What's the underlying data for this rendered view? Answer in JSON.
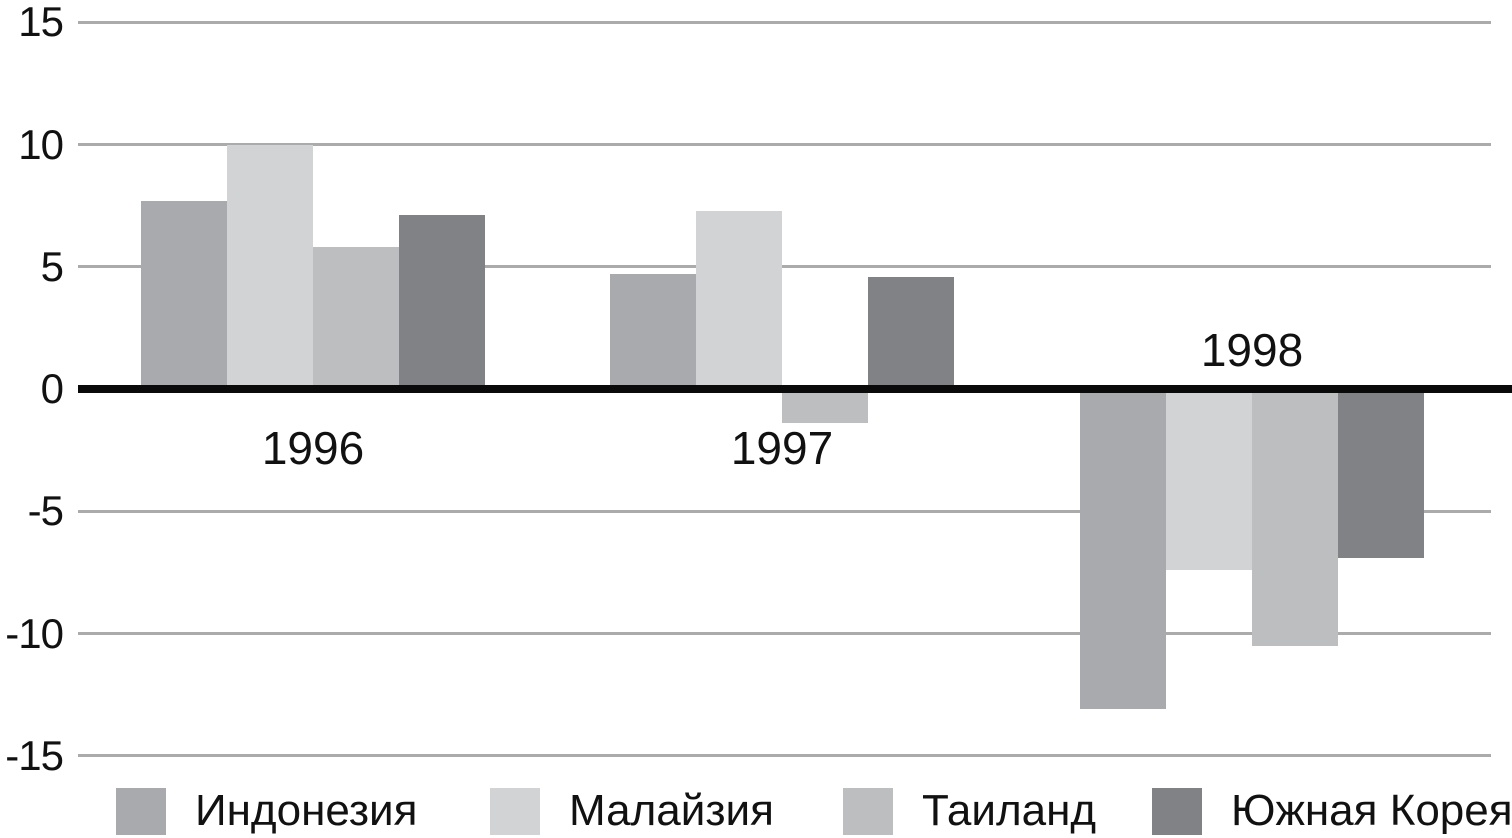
{
  "chart_data": {
    "type": "bar",
    "title": "",
    "xlabel": "",
    "ylabel": "",
    "categories": [
      "1996",
      "1997",
      "1998"
    ],
    "series": [
      {
        "id": "indonesia",
        "name": "Индонезия",
        "color": "#a9aaad",
        "values": [
          7.7,
          4.7,
          -13.1
        ]
      },
      {
        "id": "malaysia",
        "name": "Малайзия",
        "color": "#d2d3d5",
        "values": [
          10.0,
          7.3,
          -7.4
        ]
      },
      {
        "id": "thailand",
        "name": "Таиланд",
        "color": "#bcbec0",
        "values": [
          5.8,
          -1.4,
          -10.5
        ]
      },
      {
        "id": "south-korea",
        "name": "Южная Корея",
        "color": "#808285",
        "values": [
          7.1,
          4.6,
          -6.9
        ]
      }
    ],
    "ylim": [
      -15,
      15
    ],
    "yticks": [
      15,
      10,
      5,
      0,
      -5,
      -10,
      -15
    ],
    "grid": "horizontal",
    "legend_position": "bottom"
  },
  "colors": {
    "background": "#ffffff",
    "gridline": "#ababab",
    "axis": "#0a0a0a",
    "text": "#111111"
  }
}
